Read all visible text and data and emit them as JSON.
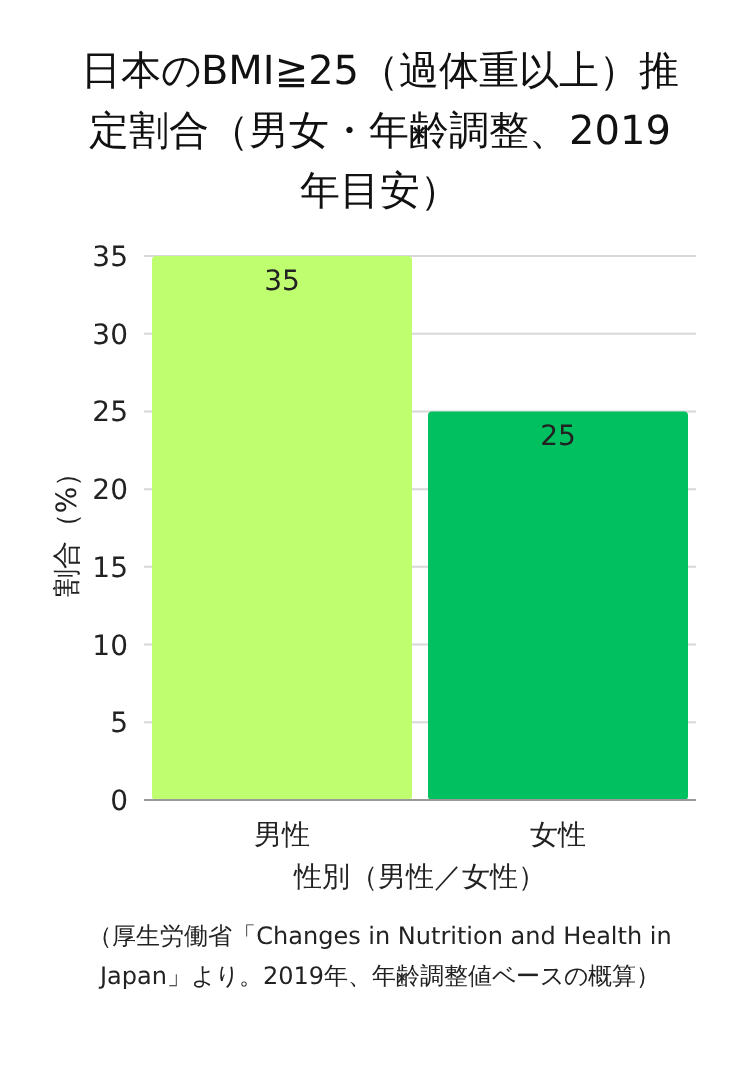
{
  "chart_data": {
    "type": "bar",
    "title": "日本のBMI≧25（過体重以上）推定割合（男女・年齢調整、2019年目安）",
    "xlabel": "性別（男性／女性）",
    "ylabel": "割合（%）",
    "categories": [
      "男性",
      "女性"
    ],
    "values": [
      35,
      25
    ],
    "colors": [
      "#bfff6f",
      "#00c060"
    ],
    "ylim": [
      0,
      35
    ],
    "yticks": [
      0,
      5,
      10,
      15,
      20,
      25,
      30,
      35
    ],
    "grid": "y",
    "data_labels": true,
    "annotations": [
      "（厚生労働省「Changes in Nutrition and Health in Japan」より。2019年、年齢調整値ベースの概算）"
    ]
  }
}
